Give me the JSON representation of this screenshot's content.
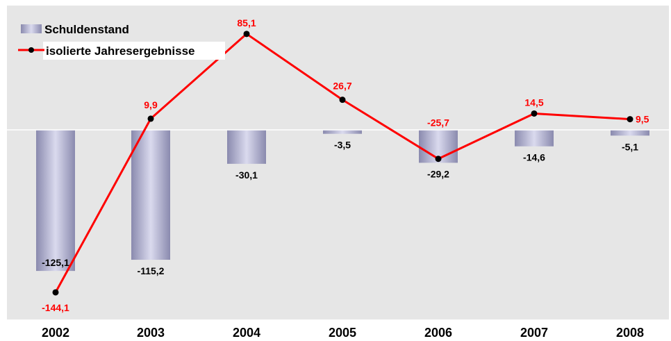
{
  "chart_data": {
    "type": "bar+line",
    "categories": [
      "2002",
      "2003",
      "2004",
      "2005",
      "2006",
      "2007",
      "2008"
    ],
    "series": [
      {
        "name": "Schuldenstand",
        "kind": "bar",
        "values": [
          -125.1,
          -115.2,
          -30.1,
          -3.5,
          -29.2,
          -14.6,
          -5.1
        ],
        "labels": [
          "-125,1",
          "-115,2",
          "-30,1",
          "-3,5",
          "-29,2",
          "-14,6",
          "-5,1"
        ]
      },
      {
        "name": "isolierte Jahresergebnisse",
        "kind": "line",
        "values": [
          -144.1,
          9.9,
          85.1,
          26.7,
          -25.7,
          14.5,
          9.5
        ],
        "labels": [
          "-144,1",
          "9,9",
          "85,1",
          "26,7",
          "-25,7",
          "14,5",
          "9,5"
        ]
      }
    ],
    "legend_position": "top-left",
    "grid": false,
    "colors": {
      "plot_background": "#e6e6e6",
      "bar_fill_dark": "#8c8cb0",
      "bar_fill_light": "#d8d8ec",
      "line": "#ff0000",
      "marker": "#000000",
      "line_label": "#ff0000",
      "bar_label": "#000000",
      "zero_line": "#ffffff"
    }
  }
}
